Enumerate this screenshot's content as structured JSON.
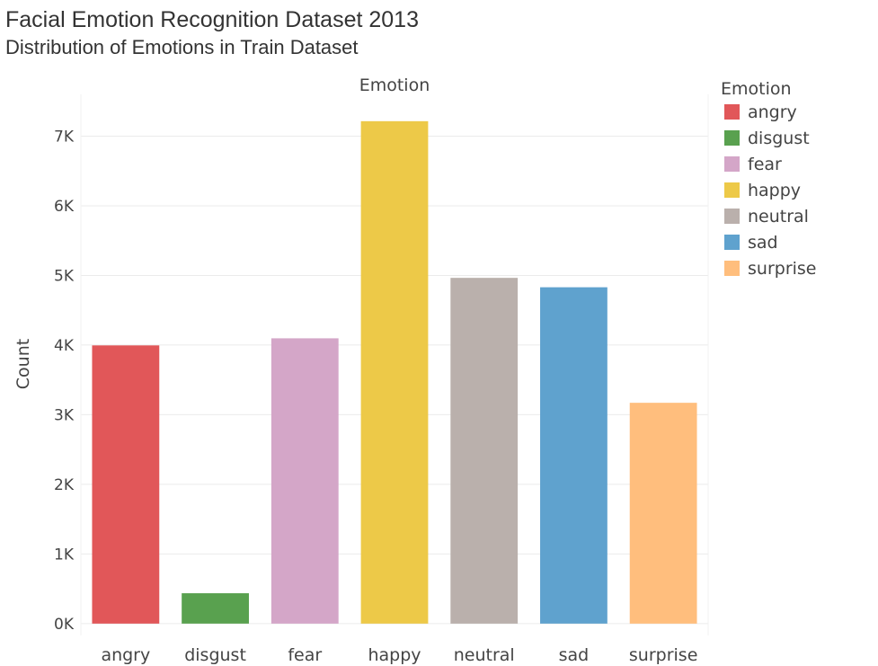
{
  "title": "Facial Emotion Recognition Dataset 2013",
  "subtitle": "Distribution of Emotions in Train Dataset",
  "chart_data": {
    "type": "bar",
    "title": "Facial Emotion Recognition Dataset 2013",
    "subtitle": "Distribution of Emotions in Train Dataset",
    "xlabel": "Emotion",
    "ylabel": "Count",
    "categories": [
      "angry",
      "disgust",
      "fear",
      "happy",
      "neutral",
      "sad",
      "surprise"
    ],
    "values": [
      3995,
      436,
      4097,
      7215,
      4965,
      4830,
      3171
    ],
    "colors": [
      "#e15759",
      "#59a14f",
      "#d4a6c8",
      "#edc948",
      "#bab0ac",
      "#5fa2ce",
      "#ffbe7d"
    ],
    "ylim": [
      -170,
      7600
    ],
    "yticks": [
      0,
      1000,
      2000,
      3000,
      4000,
      5000,
      6000,
      7000
    ],
    "ytick_labels": [
      "0K",
      "1K",
      "2K",
      "3K",
      "4K",
      "5K",
      "6K",
      "7K"
    ],
    "grid": true,
    "legend": {
      "title": "Emotion",
      "placement": "right",
      "entries": [
        "angry",
        "disgust",
        "fear",
        "happy",
        "neutral",
        "sad",
        "surprise"
      ]
    }
  }
}
